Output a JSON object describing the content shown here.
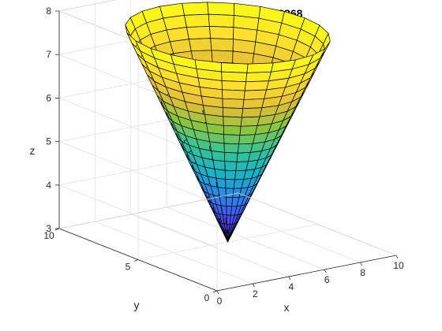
{
  "chart_data": {
    "type": "surface",
    "title": "Alexander Bartella, 400308868",
    "xlabel": "x",
    "ylabel": "y",
    "zlabel": "z",
    "xlim": [
      0,
      10
    ],
    "ylim": [
      0,
      10
    ],
    "zlim": [
      3,
      8
    ],
    "xticks": [
      "0",
      "2",
      "4",
      "6",
      "8",
      "10"
    ],
    "yticks": [
      "0",
      "5",
      "10"
    ],
    "zticks": [
      "3",
      "4",
      "5",
      "6",
      "7",
      "8"
    ],
    "grid": true,
    "colormap": "parula",
    "colormap_colors": [
      "#3e26a8",
      "#4a4df4",
      "#2986ea",
      "#1ab2c7",
      "#33c498",
      "#8ac542",
      "#e4bd36",
      "#fce02c",
      "#f9fb15"
    ],
    "surface": {
      "shape": "cone",
      "apex": [
        5,
        5,
        3
      ],
      "center": [
        5,
        5
      ],
      "top_radius": 4.3,
      "z_range": [
        3,
        7.8
      ],
      "radial_rings": 20,
      "angular_segments": 24,
      "formula": "z = 3 + 1.116 * sqrt((x-5)^2 + (y-5)^2)"
    }
  }
}
